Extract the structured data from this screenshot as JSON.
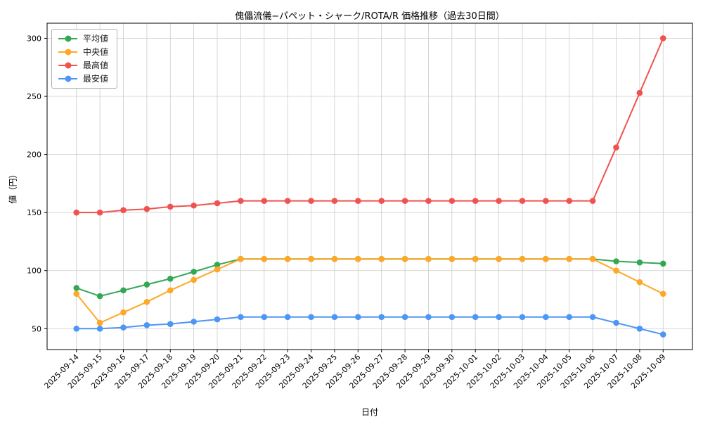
{
  "chart_data": {
    "type": "line",
    "title": "傀儡流儀−パペット・シャーク/ROTA/R 価格推移（過去30日間）",
    "xlabel": "日付",
    "ylabel": "値（円）",
    "grid": true,
    "legend_position": "upper left",
    "ylim": [
      32,
      313
    ],
    "yticks": [
      50,
      100,
      150,
      200,
      250,
      300
    ],
    "x": [
      "2025-09-14",
      "2025-09-15",
      "2025-09-16",
      "2025-09-17",
      "2025-09-18",
      "2025-09-19",
      "2025-09-20",
      "2025-09-21",
      "2025-09-22",
      "2025-09-23",
      "2025-09-24",
      "2025-09-25",
      "2025-09-26",
      "2025-09-27",
      "2025-09-28",
      "2025-09-29",
      "2025-09-30",
      "2025-10-01",
      "2025-10-02",
      "2025-10-03",
      "2025-10-04",
      "2025-10-05",
      "2025-10-06",
      "2025-10-07",
      "2025-10-08",
      "2025-10-09"
    ],
    "series": [
      {
        "name": "平均値",
        "color": "#33a853",
        "values": [
          85,
          78,
          83,
          88,
          93,
          99,
          105,
          110,
          110,
          110,
          110,
          110,
          110,
          110,
          110,
          110,
          110,
          110,
          110,
          110,
          110,
          110,
          110,
          108,
          107,
          106
        ]
      },
      {
        "name": "中央値",
        "color": "#ffa726",
        "values": [
          80,
          55,
          64,
          73,
          83,
          92,
          101,
          110,
          110,
          110,
          110,
          110,
          110,
          110,
          110,
          110,
          110,
          110,
          110,
          110,
          110,
          110,
          110,
          100,
          90,
          80
        ]
      },
      {
        "name": "最高値",
        "color": "#ef5350",
        "values": [
          150,
          150,
          152,
          153,
          155,
          156,
          158,
          160,
          160,
          160,
          160,
          160,
          160,
          160,
          160,
          160,
          160,
          160,
          160,
          160,
          160,
          160,
          160,
          206,
          253,
          300
        ]
      },
      {
        "name": "最安値",
        "color": "#4d96f5",
        "values": [
          50,
          50,
          51,
          53,
          54,
          56,
          58,
          60,
          60,
          60,
          60,
          60,
          60,
          60,
          60,
          60,
          60,
          60,
          60,
          60,
          60,
          60,
          60,
          55,
          50,
          45
        ]
      }
    ]
  }
}
